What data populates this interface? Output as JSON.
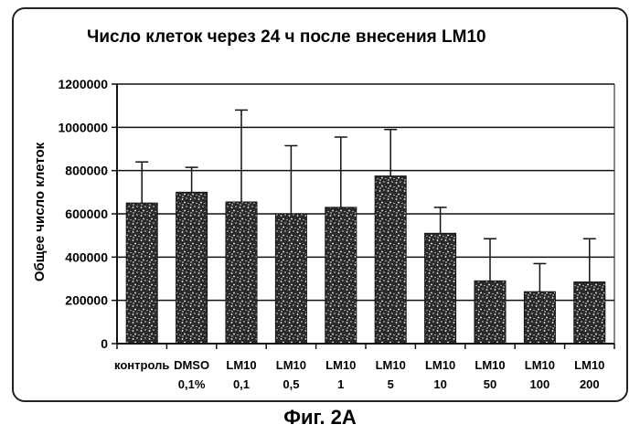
{
  "figure_caption": "Фиг. 2A",
  "chart_data": {
    "type": "bar",
    "title": "Число клеток через 24 ч после внесения LM10",
    "ylabel": "Общее число клеток",
    "xlabel": "",
    "ylim": [
      0,
      1200000
    ],
    "yticks": [
      0,
      200000,
      400000,
      600000,
      800000,
      1000000,
      1200000
    ],
    "ytick_labels": [
      "0",
      "200000",
      "400000",
      "600000",
      "800000",
      "1000000",
      "1200000"
    ],
    "grid": true,
    "categories": [
      [
        "контроль",
        ""
      ],
      [
        "DMSO",
        "0,1%"
      ],
      [
        "LM10",
        "0,1"
      ],
      [
        "LM10",
        "0,5"
      ],
      [
        "LM10",
        "1"
      ],
      [
        "LM10",
        "5"
      ],
      [
        "LM10",
        "10"
      ],
      [
        "LM10",
        "50"
      ],
      [
        "LM10",
        "100"
      ],
      [
        "LM10",
        "200"
      ]
    ],
    "values": [
      650000,
      700000,
      655000,
      600000,
      630000,
      775000,
      510000,
      290000,
      240000,
      285000
    ],
    "error_upper": [
      840000,
      815000,
      1080000,
      915000,
      955000,
      990000,
      630000,
      485000,
      370000,
      485000
    ],
    "bar_color": "#2a2a2a",
    "speckle_color": "#ffffff",
    "background_color": "#ffffff"
  }
}
